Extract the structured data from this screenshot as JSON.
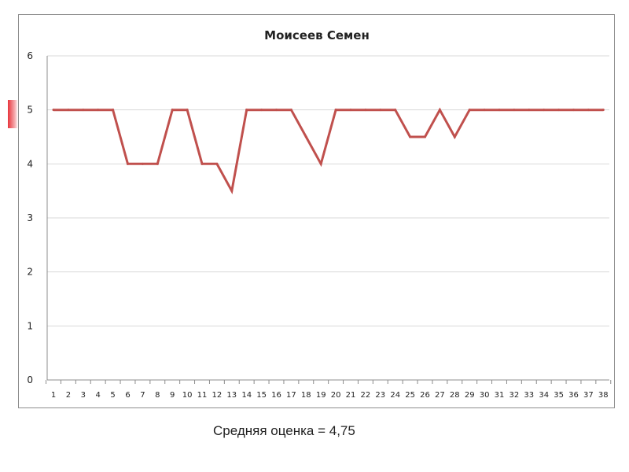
{
  "caption": "Средняя оценка = 4,75",
  "colors": {
    "series": "#c0504d",
    "grid": "#d9d9d9",
    "axis": "#8c8c8c",
    "accent": "#e8353c"
  },
  "chart_data": {
    "type": "line",
    "title": "Моисеев Семен",
    "xlabel": "",
    "ylabel": "",
    "ylim": [
      0,
      6
    ],
    "yticks": [
      0,
      1,
      2,
      3,
      4,
      5,
      6
    ],
    "grid": true,
    "legend": "none",
    "x": [
      "1",
      "2",
      "3",
      "4",
      "5",
      "6",
      "7",
      "8",
      "9",
      "10",
      "11",
      "12",
      "13",
      "14",
      "15",
      "16",
      "17",
      "18",
      "19",
      "20",
      "21",
      "22",
      "23",
      "24",
      "25",
      "26",
      "27",
      "28",
      "29",
      "30",
      "31",
      "32",
      "33",
      "34",
      "35",
      "36",
      "37",
      "38"
    ],
    "series": [
      {
        "name": "",
        "values": [
          5,
          5,
          5,
          5,
          5,
          4,
          4,
          4,
          5,
          5,
          4,
          4,
          3.5,
          5,
          5,
          5,
          5,
          4.5,
          4,
          5,
          5,
          5,
          5,
          5,
          4.5,
          4.5,
          5,
          4.5,
          5,
          5,
          5,
          5,
          5,
          5,
          5,
          5,
          5,
          5
        ]
      }
    ]
  }
}
